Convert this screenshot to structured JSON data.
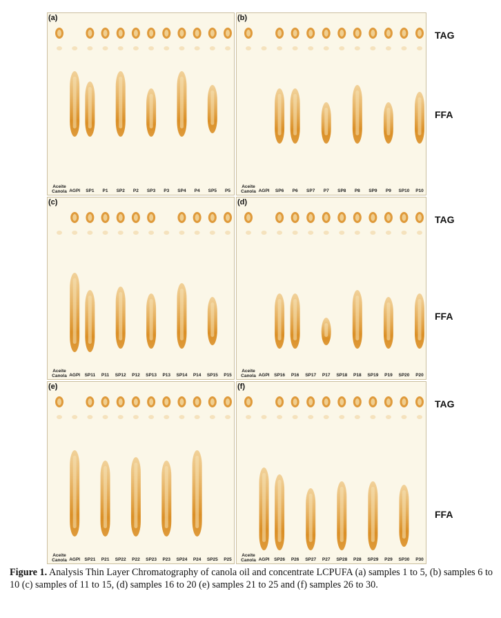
{
  "figure": {
    "panels": [
      {
        "tag": "(a)",
        "lanes": [
          "Aceite Canola",
          "AGPI",
          "SP1",
          "P1",
          "SP2",
          "P2",
          "SP3",
          "P3",
          "SP4",
          "P4",
          "SP5",
          "P5"
        ]
      },
      {
        "tag": "(b)",
        "lanes": [
          "Aceite Canola",
          "AGPI",
          "SP6",
          "P6",
          "SP7",
          "P7",
          "SP8",
          "P8",
          "SP9",
          "P9",
          "SP10",
          "P10"
        ]
      },
      {
        "tag": "(c)",
        "lanes": [
          "Aceite Canola",
          "AGPI",
          "SP11",
          "P11",
          "SP12",
          "P12",
          "SP13",
          "P13",
          "SP14",
          "P14",
          "SP15",
          "P15"
        ]
      },
      {
        "tag": "(d)",
        "lanes": [
          "Aceite Canola",
          "AGPI",
          "SP16",
          "P16",
          "SP17",
          "P17",
          "SP18",
          "P18",
          "SP19",
          "P19",
          "SP20",
          "P20"
        ]
      },
      {
        "tag": "(e)",
        "lanes": [
          "Aceite Canola",
          "AGPI",
          "SP21",
          "P21",
          "SP22",
          "P22",
          "SP23",
          "P23",
          "SP24",
          "P24",
          "SP25",
          "P25"
        ]
      },
      {
        "tag": "(f)",
        "lanes": [
          "Aceite Canola",
          "AGPI",
          "SP26",
          "P26",
          "SP27",
          "P27",
          "SP28",
          "P28",
          "SP29",
          "P29",
          "SP30",
          "P30"
        ]
      }
    ],
    "side_labels": {
      "tag": "TAG",
      "ffa": "FFA"
    },
    "colors": {
      "plate": "#fbf7e8",
      "spot": "#d98a1c",
      "spot_light": "#e9b35a"
    }
  },
  "caption": {
    "label": "Figure 1.",
    "text": " Analysis Thin Layer Chromatography of canola oil and concentrate LCPUFA (a) samples 1 to 5, (b) samples 6 to 10 (c) samples of 11 to 15, (d) samples 16 to 20 (e) samples 21 to 25 and (f) samples 26 to 30."
  }
}
